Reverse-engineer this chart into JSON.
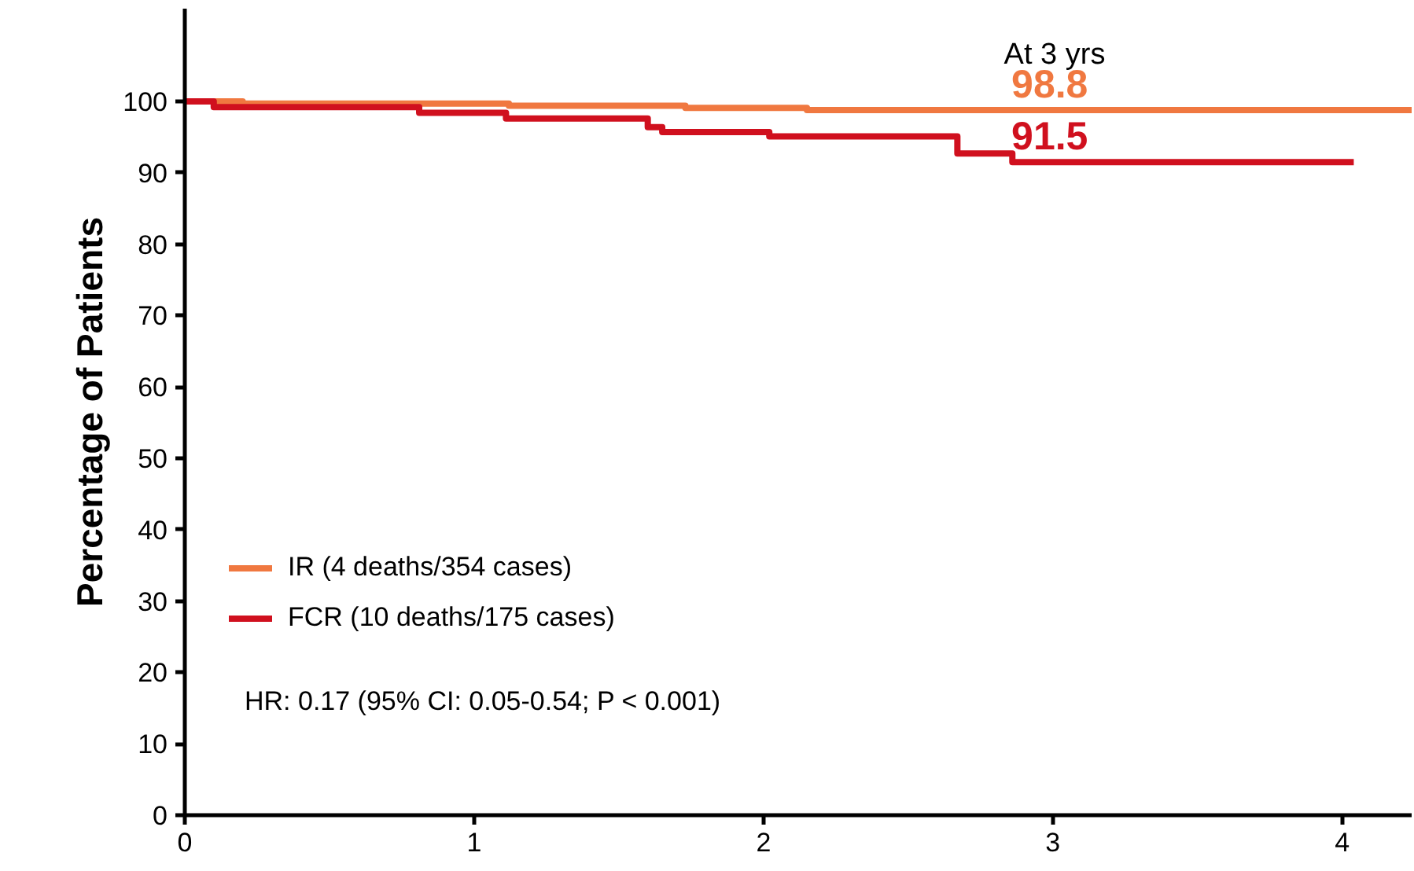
{
  "chart_data": {
    "type": "step",
    "ylabel": "Percentage of Patients",
    "xlim": [
      0,
      4.24
    ],
    "ylim": [
      0,
      113
    ],
    "xticks": [
      0,
      1,
      2,
      3,
      4
    ],
    "yticks": [
      0,
      10,
      20,
      30,
      40,
      50,
      60,
      70,
      80,
      90,
      100
    ],
    "grid": false,
    "legend": "bottom left",
    "line_style": "solid",
    "marker": "none",
    "series": [
      {
        "name": "IR (4 deaths/354 cases)",
        "color": "#f07840",
        "x": [
          0,
          0.2,
          1.12,
          1.73,
          2.15,
          4.24
        ],
        "values": [
          100,
          99.7,
          99.4,
          99.1,
          98.8,
          98.8
        ]
      },
      {
        "name": "FCR (10 deaths/175 cases)",
        "color": "#d0101e",
        "x": [
          0,
          0.1,
          0.81,
          1.11,
          1.6,
          1.65,
          2.02,
          2.67,
          2.86,
          4.04
        ],
        "values": [
          100,
          99.2,
          98.4,
          97.6,
          96.4,
          95.7,
          95.1,
          92.7,
          91.5,
          91.5
        ]
      }
    ],
    "annotations": [
      "At 3 yrs",
      {
        "text": "98.8",
        "x": 3,
        "y": 98.8
      },
      {
        "text": "91.5",
        "x": 3,
        "y": 91.5
      },
      "HR: 0.17 (95% CI: 0.05-0.54; P < 0.001)"
    ]
  }
}
